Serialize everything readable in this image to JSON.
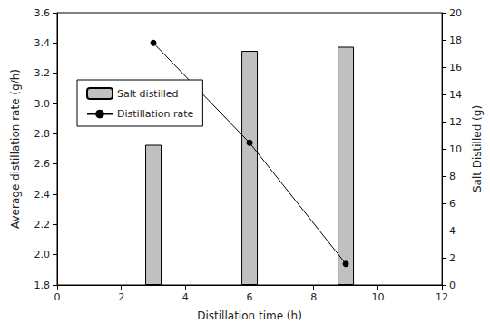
{
  "chart_data": {
    "type": "bar",
    "x_label": "Distillation time (h)",
    "y_label": "Average distillation rate (g/h)",
    "y2_label": "Salt Distilled (g)",
    "x": [
      3,
      6,
      9
    ],
    "series": [
      {
        "name": "Salt distilled",
        "type": "bar",
        "axis": "y2",
        "color": "#c0c0c0",
        "values": [
          10.3,
          17.2,
          17.5
        ]
      },
      {
        "name": "Distillation rate",
        "type": "line",
        "color": "#000000",
        "marker": "circle",
        "line_style": "solid",
        "values": [
          3.4,
          2.74,
          1.94
        ]
      }
    ],
    "xlim": [
      0,
      12
    ],
    "xticks": [
      0,
      2,
      4,
      6,
      8,
      10,
      12
    ],
    "ylim": [
      1.8,
      3.6
    ],
    "yticks": [
      1.8,
      {
        "value": 2,
        "label": "2.0"
      },
      2.2,
      2.4,
      2.6,
      2.8,
      {
        "value": 3,
        "label": "3.0"
      },
      3.2,
      3.4,
      3.6
    ],
    "y2lim": [
      0,
      20
    ],
    "y2ticks": [
      0,
      2,
      4,
      6,
      8,
      10,
      12,
      14,
      16,
      18,
      20
    ],
    "legend": "upper left",
    "grid": false
  }
}
